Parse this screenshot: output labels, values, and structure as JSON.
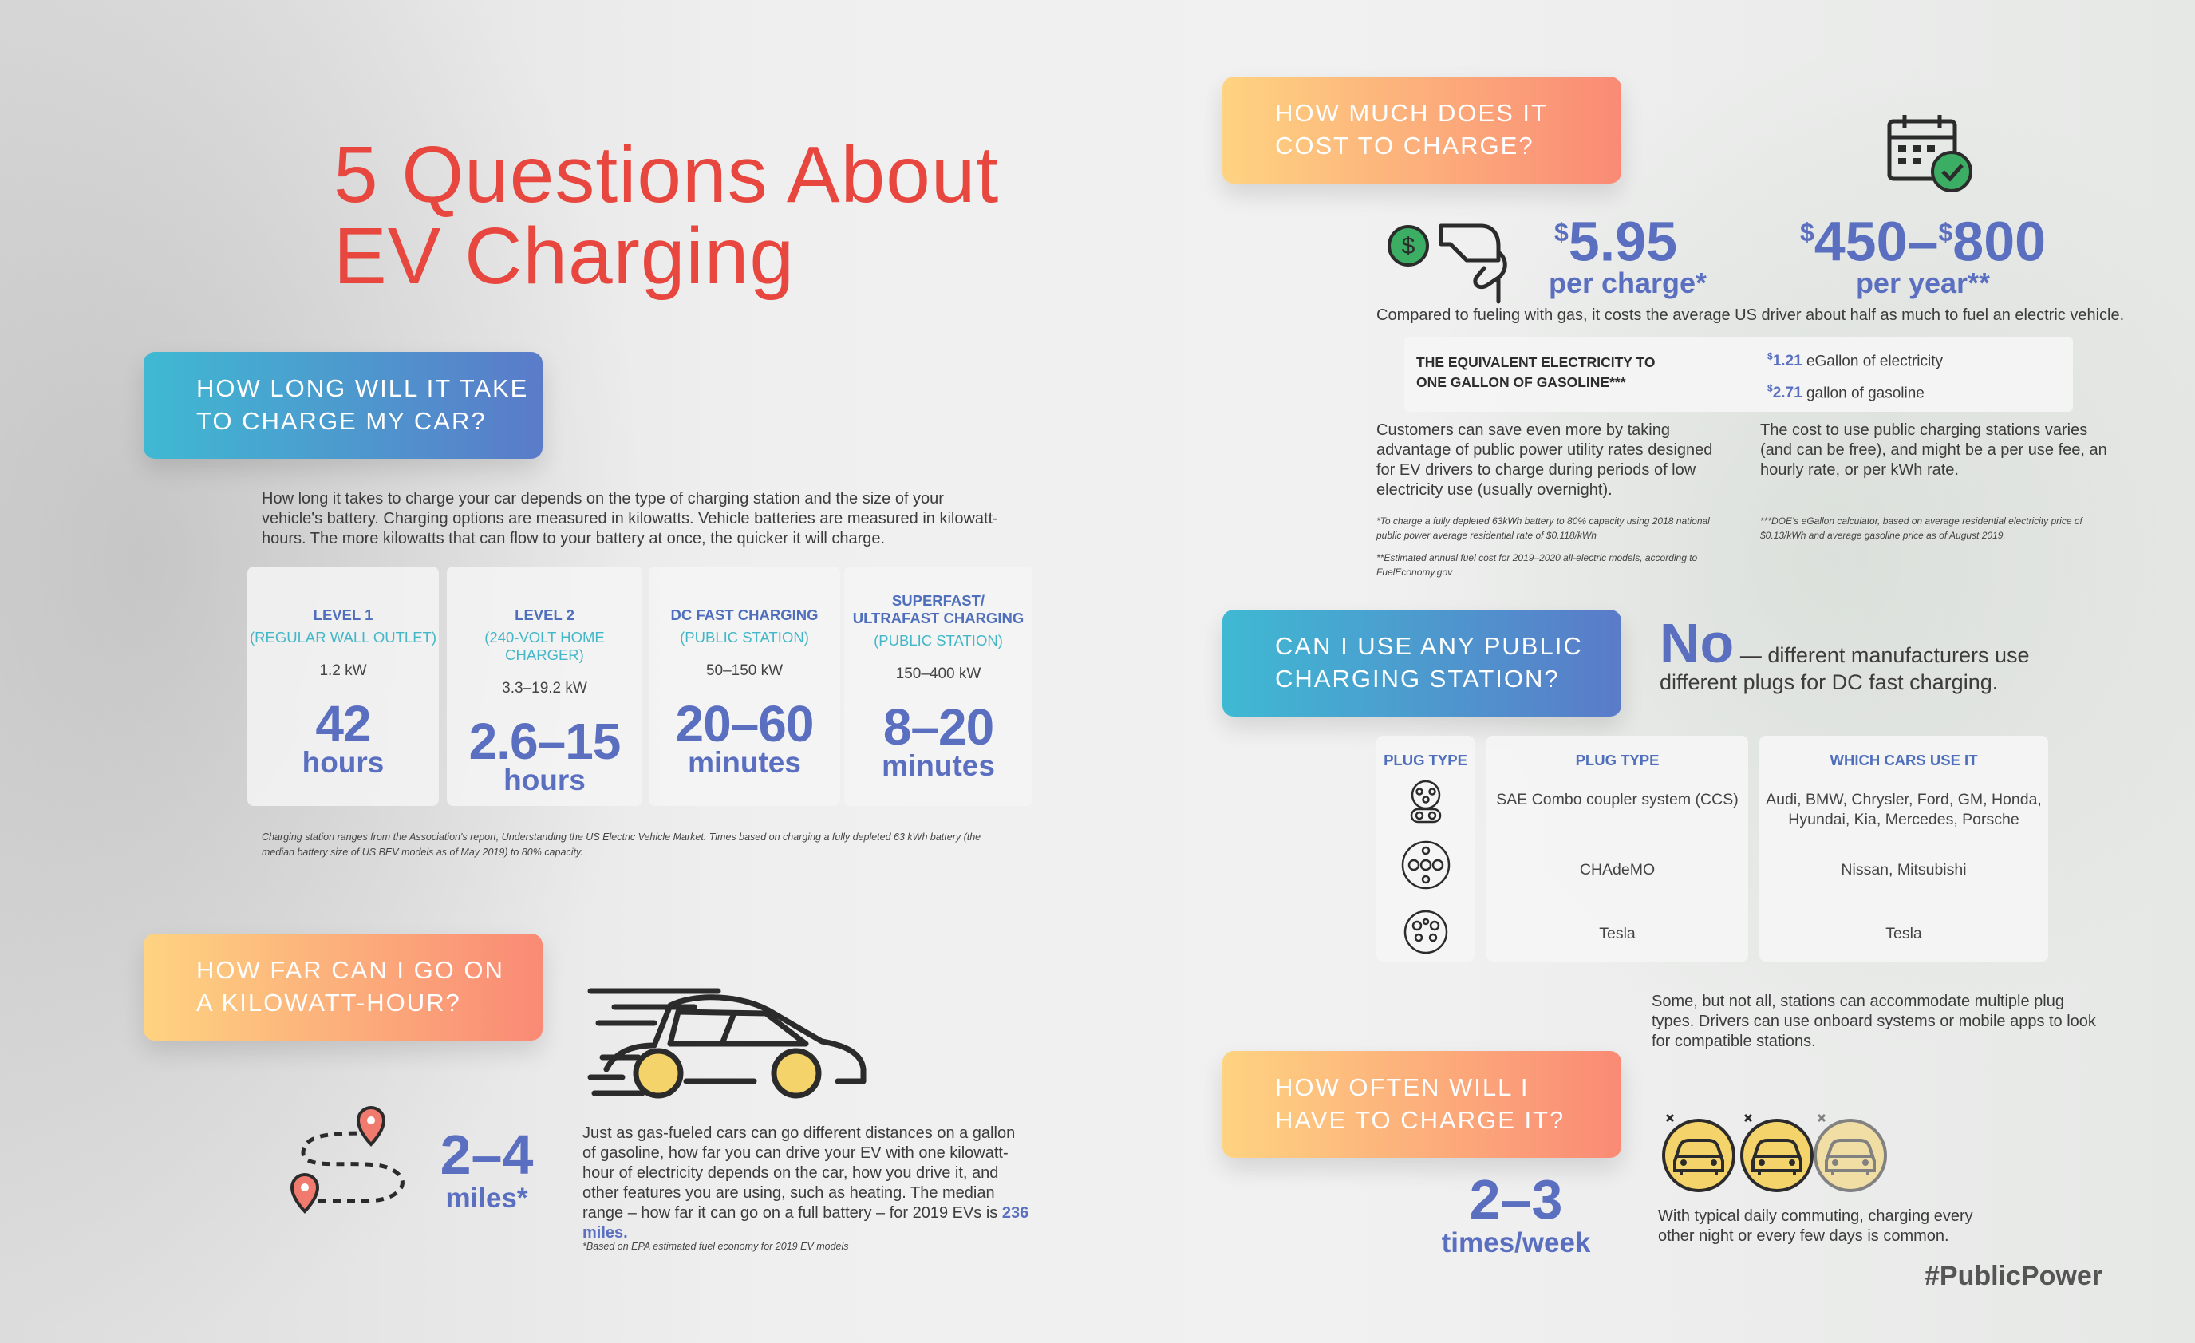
{
  "title": {
    "line1": "5  Questions About",
    "line2": "EV Charging"
  },
  "q1": {
    "title_line1": "HOW LONG WILL IT TAKE",
    "title_line2": "TO CHARGE MY CAR?",
    "intro": "How long it takes to charge your car depends on the type of charging station and the size of your vehicle's battery. Charging options are measured in kilowatts. Vehicle batteries are measured in kilowatt-hours. The more kilowatts that can flow to your battery at once, the quicker it will charge.",
    "levels": [
      {
        "name": "LEVEL 1",
        "sub": "(REGULAR WALL OUTLET)",
        "kw": "1.2 kW",
        "value": "42",
        "unit": "hours"
      },
      {
        "name": "LEVEL 2",
        "sub": "(240-VOLT HOME CHARGER)",
        "kw": "3.3–19.2 kW",
        "value": "2.6–15",
        "unit": "hours"
      },
      {
        "name": "DC FAST CHARGING",
        "sub": "(PUBLIC STATION)",
        "kw": "50–150 kW",
        "value": "20–60",
        "unit": "minutes"
      },
      {
        "name1": "SUPERFAST/",
        "name2": "ULTRAFAST CHARGING",
        "sub": "(PUBLIC STATION)",
        "kw": "150–400 kW",
        "value": "8–20",
        "unit": "minutes"
      }
    ],
    "footnote_line1": "Charging station ranges from the Association's report, Understanding the US Electric Vehicle Market. Times based on charging a fully depleted 63 kWh battery (the",
    "footnote_line2": "median battery size of US BEV models as of May 2019) to 80% capacity."
  },
  "q2": {
    "title_line1": "HOW FAR CAN I GO ON",
    "title_line2": "A KILOWATT-HOUR?",
    "value": "2–4",
    "unit": "miles*",
    "text": "Just as gas-fueled cars can go different distances on a gallon of gasoline, how far you can drive your EV with one kilowatt-hour of electricity depends on the car, how you drive it, and other features you are using, such as heating. The median range – how far it can go on a full battery – for 2019 EVs is",
    "text_highlight": "236 miles.",
    "footnote": "*Based on EPA estimated fuel economy for 2019 EV models"
  },
  "q3": {
    "title_line1": "HOW MUCH DOES IT",
    "title_line2": "COST TO CHARGE?",
    "per_charge_value": "5.95",
    "per_charge_unit": "per charge*",
    "per_year_value_a": "450–",
    "per_year_value_b": "800",
    "per_year_unit": "per year**",
    "dollar": "$",
    "compare": "Compared to fueling with gas, it costs the average US driver about half as much to fuel an electric vehicle.",
    "equiv_title_line1": "THE EQUIVALENT ELECTRICITY TO",
    "equiv_title_line2": "ONE GALLON OF GASOLINE***",
    "egallon_value": "1.21",
    "egallon_label": " eGallon of electricity",
    "gallon_value": "2.71",
    "gallon_label": " gallon of gasoline",
    "save_text": "Customers can save even more by taking advantage of public power utility rates designed for EV drivers to charge during periods of low electricity use (usually overnight).",
    "public_text": "The cost to use public charging stations varies (and can be free), and might be a per use fee, an hourly rate, or per kWh rate.",
    "note1": "*To charge a fully depleted 63kWh battery to 80% capacity using 2018 national public power average residential rate of $0.118/kWh",
    "note2": "**Estimated annual fuel cost for 2019–2020 all-electric models, according to FuelEconomy.gov",
    "note3": "***DOE's eGallon calculator, based on average residential electricity price of $0.13/kWh and average gasoline price as of August 2019."
  },
  "q4": {
    "title_line1": "CAN I USE ANY PUBLIC",
    "title_line2": "CHARGING STATION?",
    "answer_big": "No",
    "answer_rest_line1": " — different manufacturers use",
    "answer_rest_line2": "different plugs for DC fast charging.",
    "headers": {
      "icon": "PLUG TYPE",
      "type": "PLUG TYPE",
      "cars": "WHICH CARS USE IT"
    },
    "rows": [
      {
        "type": "SAE Combo coupler system (CCS)",
        "cars_line1": "Audi, BMW, Chrysler, Ford, GM, Honda,",
        "cars_line2": "Hyundai, Kia, Mercedes, Porsche"
      },
      {
        "type": "CHAdeMO",
        "cars_line1": "Nissan, Mitsubishi",
        "cars_line2": ""
      },
      {
        "type": "Tesla",
        "cars_line1": "Tesla",
        "cars_line2": ""
      }
    ],
    "footer": "Some, but not all, stations can accommodate multiple plug types. Drivers can use onboard systems or mobile apps to look for compatible stations."
  },
  "q5": {
    "title_line1": "HOW OFTEN WILL I",
    "title_line2": "HAVE TO CHARGE IT?",
    "value": "2–3",
    "unit": "times/week",
    "text": "With typical daily commuting, charging every other night or every few days is common."
  },
  "hashtag": "#PublicPower",
  "icons": [
    "dollar-icon",
    "plug-icon",
    "calendar-check-icon",
    "car-icon",
    "map-route-icon",
    "ccs-plug-icon",
    "chademo-plug-icon",
    "tesla-plug-icon",
    "car-charge-icon"
  ],
  "colors": {
    "title": "#e8473f",
    "accent_blue": "#5b6fc1",
    "teal": "#43b7c8"
  }
}
